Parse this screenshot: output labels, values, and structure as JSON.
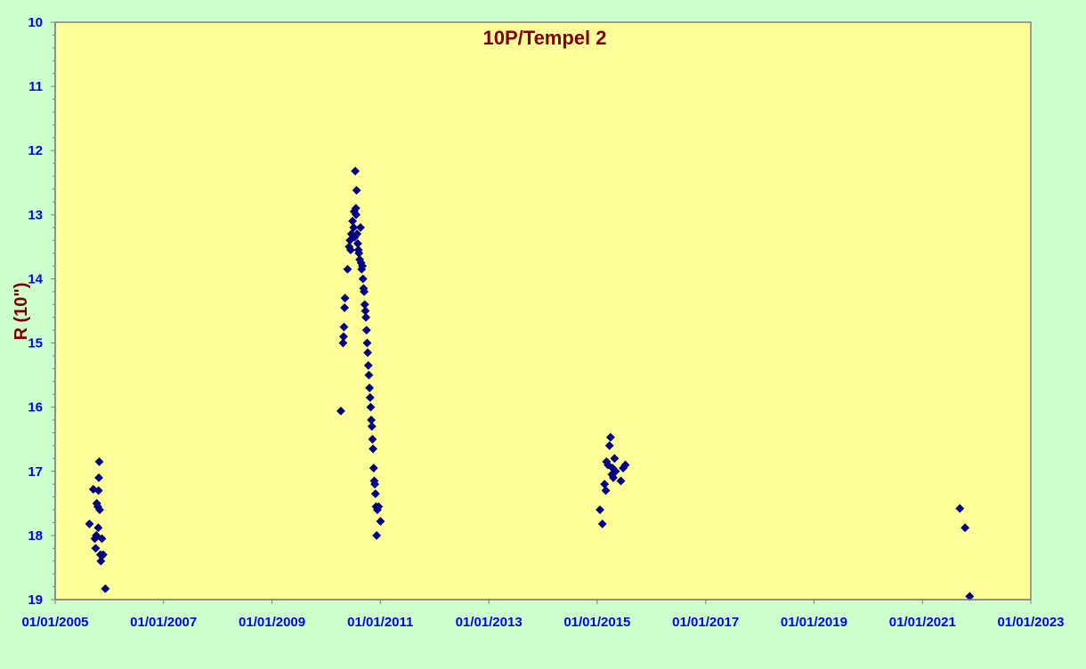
{
  "chart_data": {
    "type": "scatter",
    "title": "10P/Tempel 2",
    "ylabel": "R (10\")",
    "xlabel": "",
    "x_ticks": [
      "01/01/2005",
      "01/01/2007",
      "01/01/2009",
      "01/01/2011",
      "01/01/2013",
      "01/01/2015",
      "01/01/2017",
      "01/01/2019",
      "01/01/2021",
      "01/01/2023"
    ],
    "y_ticks": [
      "10",
      "11",
      "12",
      "13",
      "14",
      "15",
      "16",
      "17",
      "18",
      "19"
    ],
    "xlim": [
      "2005-01-01",
      "2023-01-01"
    ],
    "ylim": [
      10,
      19
    ],
    "y_inverted": true,
    "grid": false,
    "colors": {
      "plot_bg": "#ffff99",
      "page_bg": "#ccffcc",
      "marker": "#00008b",
      "axis": "#808080",
      "tick_text": "#0000ff",
      "title": "#800000"
    },
    "series": [
      {
        "marker": "diamond",
        "points": [
          [
            "2005-08-20",
            17.82
          ],
          [
            "2005-09-15",
            17.28
          ],
          [
            "2005-09-25",
            18.05
          ],
          [
            "2005-10-01",
            18.2
          ],
          [
            "2005-10-05",
            18.0
          ],
          [
            "2005-10-08",
            17.5
          ],
          [
            "2005-10-15",
            17.55
          ],
          [
            "2005-10-18",
            17.88
          ],
          [
            "2005-10-20",
            17.3
          ],
          [
            "2005-10-22",
            17.1
          ],
          [
            "2005-10-25",
            16.85
          ],
          [
            "2005-10-28",
            17.6
          ],
          [
            "2005-11-02",
            18.3
          ],
          [
            "2005-11-05",
            18.4
          ],
          [
            "2005-11-12",
            18.05
          ],
          [
            "2005-11-20",
            18.3
          ],
          [
            "2005-12-05",
            18.83
          ],
          [
            "2010-04-10",
            16.06
          ],
          [
            "2010-04-25",
            15.0
          ],
          [
            "2010-04-28",
            14.9
          ],
          [
            "2010-05-01",
            14.75
          ],
          [
            "2010-05-05",
            14.45
          ],
          [
            "2010-05-08",
            14.3
          ],
          [
            "2010-05-25",
            13.85
          ],
          [
            "2010-06-05",
            13.5
          ],
          [
            "2010-06-10",
            13.4
          ],
          [
            "2010-06-15",
            13.55
          ],
          [
            "2010-06-20",
            13.3
          ],
          [
            "2010-06-28",
            13.1
          ],
          [
            "2010-07-05",
            13.2
          ],
          [
            "2010-07-08",
            12.95
          ],
          [
            "2010-07-12",
            13.35
          ],
          [
            "2010-07-16",
            12.32
          ],
          [
            "2010-07-20",
            12.9
          ],
          [
            "2010-07-22",
            13.0
          ],
          [
            "2010-07-25",
            12.62
          ],
          [
            "2010-07-28",
            13.3
          ],
          [
            "2010-08-02",
            13.45
          ],
          [
            "2010-08-06",
            13.55
          ],
          [
            "2010-08-10",
            13.6
          ],
          [
            "2010-08-15",
            13.7
          ],
          [
            "2010-08-20",
            13.2
          ],
          [
            "2010-08-24",
            13.75
          ],
          [
            "2010-08-28",
            13.85
          ],
          [
            "2010-09-02",
            13.8
          ],
          [
            "2010-09-06",
            14.0
          ],
          [
            "2010-09-10",
            14.15
          ],
          [
            "2010-09-14",
            14.2
          ],
          [
            "2010-09-18",
            14.4
          ],
          [
            "2010-09-22",
            14.5
          ],
          [
            "2010-09-26",
            14.6
          ],
          [
            "2010-09-30",
            14.8
          ],
          [
            "2010-10-04",
            15.0
          ],
          [
            "2010-10-08",
            15.15
          ],
          [
            "2010-10-12",
            15.35
          ],
          [
            "2010-10-16",
            15.5
          ],
          [
            "2010-10-20",
            15.7
          ],
          [
            "2010-10-24",
            15.85
          ],
          [
            "2010-10-28",
            16.0
          ],
          [
            "2010-11-01",
            16.2
          ],
          [
            "2010-11-05",
            16.3
          ],
          [
            "2010-11-09",
            16.5
          ],
          [
            "2010-11-13",
            16.65
          ],
          [
            "2010-11-17",
            16.95
          ],
          [
            "2010-11-21",
            17.15
          ],
          [
            "2010-11-25",
            17.2
          ],
          [
            "2010-11-29",
            17.35
          ],
          [
            "2010-12-03",
            17.55
          ],
          [
            "2010-12-07",
            18.0
          ],
          [
            "2010-12-12",
            17.6
          ],
          [
            "2010-12-20",
            17.55
          ],
          [
            "2011-01-02",
            17.78
          ],
          [
            "2015-01-20",
            17.6
          ],
          [
            "2015-02-05",
            17.82
          ],
          [
            "2015-02-20",
            17.2
          ],
          [
            "2015-02-28",
            17.3
          ],
          [
            "2015-03-05",
            16.85
          ],
          [
            "2015-03-15",
            16.9
          ],
          [
            "2015-03-25",
            16.6
          ],
          [
            "2015-04-01",
            16.47
          ],
          [
            "2015-04-10",
            17.05
          ],
          [
            "2015-04-15",
            16.95
          ],
          [
            "2015-04-20",
            17.1
          ],
          [
            "2015-04-28",
            16.8
          ],
          [
            "2015-05-05",
            17.0
          ],
          [
            "2015-06-10",
            17.15
          ],
          [
            "2015-06-25",
            16.95
          ],
          [
            "2015-07-10",
            16.9
          ],
          [
            "2021-09-10",
            17.58
          ],
          [
            "2021-10-15",
            17.88
          ],
          [
            "2021-11-15",
            18.95
          ]
        ]
      }
    ]
  }
}
